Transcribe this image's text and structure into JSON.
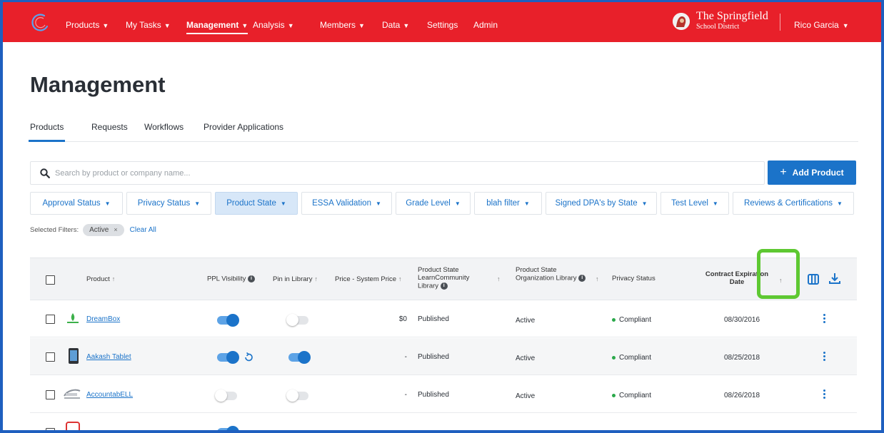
{
  "nav": {
    "items": [
      {
        "label": "Products",
        "has_menu": true
      },
      {
        "label": "My Tasks",
        "has_menu": true
      },
      {
        "label": "Management",
        "has_menu": true,
        "active": true
      },
      {
        "label": "Analysis",
        "has_menu": true
      },
      {
        "label": "Members",
        "has_menu": true
      },
      {
        "label": "Data",
        "has_menu": true
      },
      {
        "label": "Settings",
        "has_menu": false
      },
      {
        "label": "Admin",
        "has_menu": false
      }
    ],
    "district_line1": "The Springfield",
    "district_line2": "School District",
    "user": "Rico Garcia",
    "chevron": "⌄",
    "brand_color": "#e8202a"
  },
  "page": {
    "title": "Management",
    "tabs": [
      "Products",
      "Requests",
      "Workflows",
      "Provider Applications"
    ],
    "active_tab": "Products"
  },
  "search": {
    "placeholder": "Search by product or company name...",
    "value": ""
  },
  "add_button": {
    "label": "Add Product",
    "icon": "plus-icon"
  },
  "filters": [
    {
      "label": "Approval Status"
    },
    {
      "label": "Privacy Status"
    },
    {
      "label": "Product State",
      "selected": true
    },
    {
      "label": "ESSA Validation"
    },
    {
      "label": "Grade Level"
    },
    {
      "label": "blah filter"
    },
    {
      "label": "Signed DPA's by State"
    },
    {
      "label": "Test Level"
    },
    {
      "label": "Reviews & Certifications"
    }
  ],
  "selected_filters": {
    "label": "Selected Filters:",
    "chips": [
      "Active"
    ],
    "clear_label": "Clear All"
  },
  "table": {
    "headers": {
      "product": "Product",
      "ppl": "PPL Visibility",
      "pin": "Pin in Library",
      "price": "Price - System Price",
      "state_lc": "Product State LearnCommunity Library",
      "state_org": "Product State Organization Library",
      "privacy": "Privacy Status",
      "contract": "Contract Expiration Date"
    },
    "sort_arrow": "↑",
    "rows": [
      {
        "name": "DreamBox",
        "ppl_visible": true,
        "pinned": false,
        "price": "$0",
        "state_lc": "Published",
        "state_org": "Active",
        "privacy": "Compliant",
        "contract": "08/30/2016",
        "icon": "dreambox-logo",
        "restore_icon": false
      },
      {
        "name": "Aakash Tablet",
        "ppl_visible": true,
        "pinned": true,
        "price": "-",
        "state_lc": "Published",
        "state_org": "Active",
        "privacy": "Compliant",
        "contract": "08/25/2018",
        "icon": "tablet-logo",
        "restore_icon": true
      },
      {
        "name": "AccountabELL",
        "ppl_visible": false,
        "pinned": false,
        "price": "-",
        "state_lc": "Published",
        "state_org": "Active",
        "privacy": "Compliant",
        "contract": "08/26/2018",
        "icon": "accountabell-logo",
        "restore_icon": false
      }
    ]
  },
  "colors": {
    "accent": "#1b73c9",
    "compliant": "#2aa84a",
    "highlight": "#5ec832"
  }
}
